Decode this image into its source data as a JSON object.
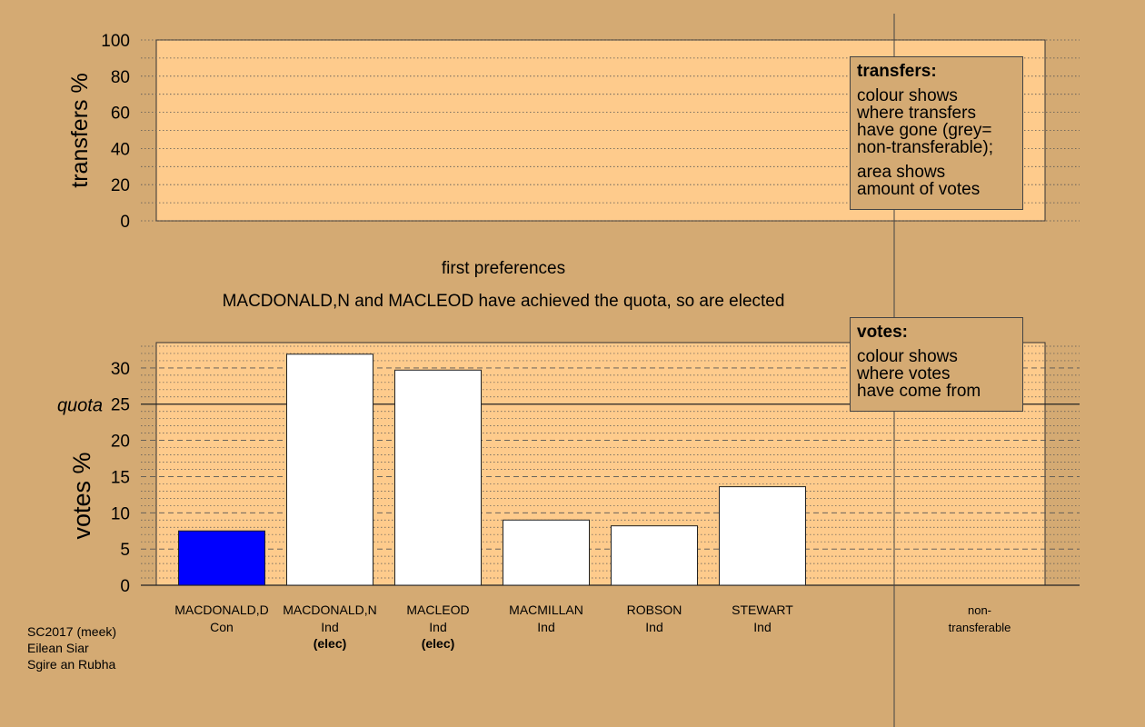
{
  "colors": {
    "background": "#d4aa73",
    "plot_bg": "#fecb8c",
    "con_bar": "#0000ff",
    "ind_bar": "#ffffff"
  },
  "top_panel": {
    "ylabel": "transfers %",
    "yticks": [
      "0",
      "20",
      "40",
      "60",
      "80",
      "100"
    ],
    "ylim": [
      0,
      100
    ],
    "legend": {
      "title": "transfers:",
      "lines_1": [
        "colour shows",
        "where transfers",
        "have gone (grey=",
        "non-transferable);"
      ],
      "lines_2": [
        "area shows",
        "amount of votes"
      ]
    }
  },
  "stage_title": "first preferences",
  "stage_subtitle": "MACDONALD,N and MACLEOD have achieved the quota, so are elected",
  "chart_data": {
    "type": "bar",
    "ylabel": "votes %",
    "ylim": [
      0,
      33.5
    ],
    "yticks": [
      "0",
      "5",
      "10",
      "15",
      "20",
      "25",
      "30"
    ],
    "quota": 25,
    "quota_label": "quota",
    "categories": [
      {
        "name": "MACDONALD,D",
        "party": "Con",
        "note": "",
        "value": 7.5,
        "color": "#0000ff"
      },
      {
        "name": "MACDONALD,N",
        "party": "Ind",
        "note": "(elec)",
        "value": 31.9,
        "color": "#ffffff"
      },
      {
        "name": "MACLEOD",
        "party": "Ind",
        "note": "(elec)",
        "value": 29.7,
        "color": "#ffffff"
      },
      {
        "name": "MACMILLAN",
        "party": "Ind",
        "note": "",
        "value": 9.0,
        "color": "#ffffff"
      },
      {
        "name": "ROBSON",
        "party": "Ind",
        "note": "",
        "value": 8.2,
        "color": "#ffffff"
      },
      {
        "name": "STEWART",
        "party": "Ind",
        "note": "",
        "value": 13.6,
        "color": "#ffffff"
      }
    ],
    "nontransferable_label": [
      "non-",
      "transferable"
    ],
    "legend": {
      "title": "votes:",
      "lines": [
        "colour shows",
        "where votes",
        "have come from"
      ]
    }
  },
  "footer": {
    "lines": [
      "SC2017 (meek)",
      "Eilean Siar",
      "Sgire an Rubha"
    ]
  }
}
